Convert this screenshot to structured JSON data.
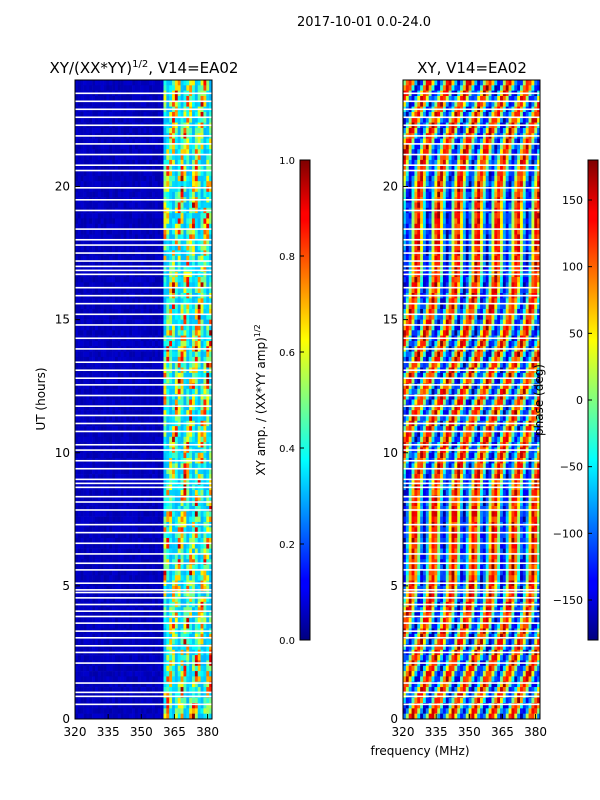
{
  "figure": {
    "suptitle": "2017-10-01 0.0-24.0",
    "shared_xlabel": "frequency (MHz)",
    "shared_ylabel": "UT (hours)"
  },
  "chart_data": [
    {
      "type": "heatmap",
      "panel": "left",
      "title_main": "XY/(XX*YY)",
      "title_exp": "1/2",
      "title_rest": ", V14=EA02",
      "xlim": [
        320,
        382
      ],
      "ylim": [
        0,
        24
      ],
      "xticks": [
        320,
        335,
        350,
        365,
        380
      ],
      "yticks": [
        0,
        5,
        10,
        15,
        20
      ],
      "colorbar": {
        "label_main": "XY amp. / (XX*YY amp)",
        "label_exp": "1/2",
        "range": [
          0.0,
          1.0
        ],
        "ticks": [
          "0.0",
          "0.2",
          "0.4",
          "0.6",
          "0.8",
          "1.0"
        ],
        "colormap": "jet"
      },
      "description_values": {
        "low_band_mhz": [
          320,
          360
        ],
        "low_band_level": 0.05,
        "high_band_mhz": [
          360,
          382
        ],
        "high_band_level_range": [
          0.3,
          1.0
        ]
      }
    },
    {
      "type": "heatmap",
      "panel": "right",
      "title": "XY, V14=EA02",
      "xlim": [
        320,
        382
      ],
      "ylim": [
        0,
        24
      ],
      "xticks": [
        320,
        335,
        350,
        365,
        380
      ],
      "yticks": [
        0,
        5,
        10,
        15,
        20
      ],
      "colorbar": {
        "label": "phase (deg)",
        "range": [
          -180,
          180
        ],
        "ticks": [
          "−150",
          "−100",
          "−50",
          "0",
          "50",
          "100",
          "150"
        ],
        "tick_values": [
          -150,
          -100,
          -50,
          0,
          50,
          100,
          150
        ],
        "colormap": "jet"
      }
    }
  ],
  "flagged_gaps_ut_hours": [
    0.55,
    0.85,
    1.0,
    1.35,
    2.1,
    2.5,
    2.75,
    3.05,
    3.3,
    3.6,
    3.85,
    4.05,
    4.3,
    4.55,
    4.75,
    4.85,
    5.1,
    5.6,
    5.85,
    6.2,
    6.6,
    7.0,
    7.3,
    7.85,
    8.15,
    8.35,
    8.7,
    8.85,
    9.0,
    9.4,
    9.7,
    10.1,
    10.3,
    10.8,
    11.1,
    11.4,
    11.75,
    12.15,
    12.55,
    12.8,
    13.1,
    13.4,
    13.9,
    14.3,
    14.8,
    15.2,
    15.6,
    15.9,
    16.2,
    16.7,
    16.85,
    17.0,
    17.2,
    17.5,
    17.8,
    18.0,
    18.4,
    19.1,
    19.5,
    19.95,
    20.6,
    20.8,
    21.2,
    21.6,
    21.9,
    22.3,
    22.6,
    22.9,
    23.2,
    23.5
  ]
}
